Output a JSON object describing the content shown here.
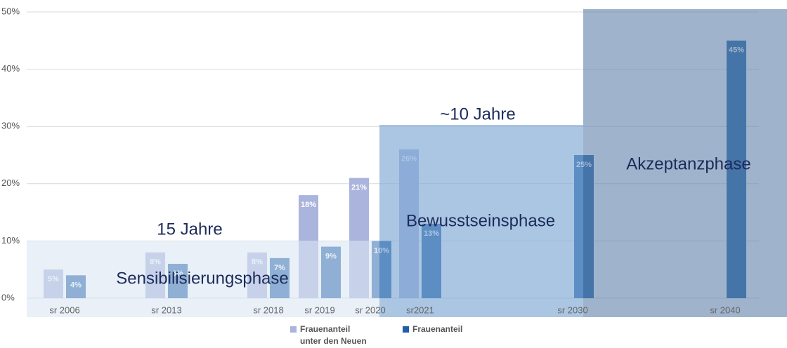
{
  "chart_data": {
    "type": "bar",
    "categories": [
      "sr 2006",
      "sr 2013",
      "sr 2018",
      "sr 2019",
      "sr 2020",
      "sr2021",
      "sr 2030",
      "sr 2040"
    ],
    "series": [
      {
        "name": "Frauenanteil unter den Neuen",
        "color": "#aab4dc",
        "values": [
          5,
          8,
          8,
          18,
          21,
          26,
          null,
          null
        ],
        "value_labels": [
          "5%",
          "8%",
          "8%",
          "18%",
          "21%",
          "26%",
          null,
          null
        ]
      },
      {
        "name": "Frauenanteil",
        "color": "#1f5fa6",
        "values": [
          4,
          6,
          7,
          9,
          10,
          13,
          25,
          45
        ],
        "value_labels": [
          "4%",
          "6%",
          "7%",
          "9%",
          "10%",
          "13%",
          "25%",
          "45%"
        ]
      }
    ],
    "ylim": [
      0,
      50
    ],
    "yticks": [
      {
        "value": 0,
        "label": "0%"
      },
      {
        "value": 10,
        "label": "10%"
      },
      {
        "value": 20,
        "label": "20%"
      },
      {
        "value": 30,
        "label": "30%"
      },
      {
        "value": 40,
        "label": "40%"
      },
      {
        "value": 50,
        "label": "50%"
      }
    ],
    "grid": true,
    "legend": "bottom",
    "annotations": [
      "15 Jahre",
      "~10 Jahre",
      "Sensibilisierungsphase",
      "Bewusstseinsphase",
      "Akzeptanzphase"
    ]
  }
}
